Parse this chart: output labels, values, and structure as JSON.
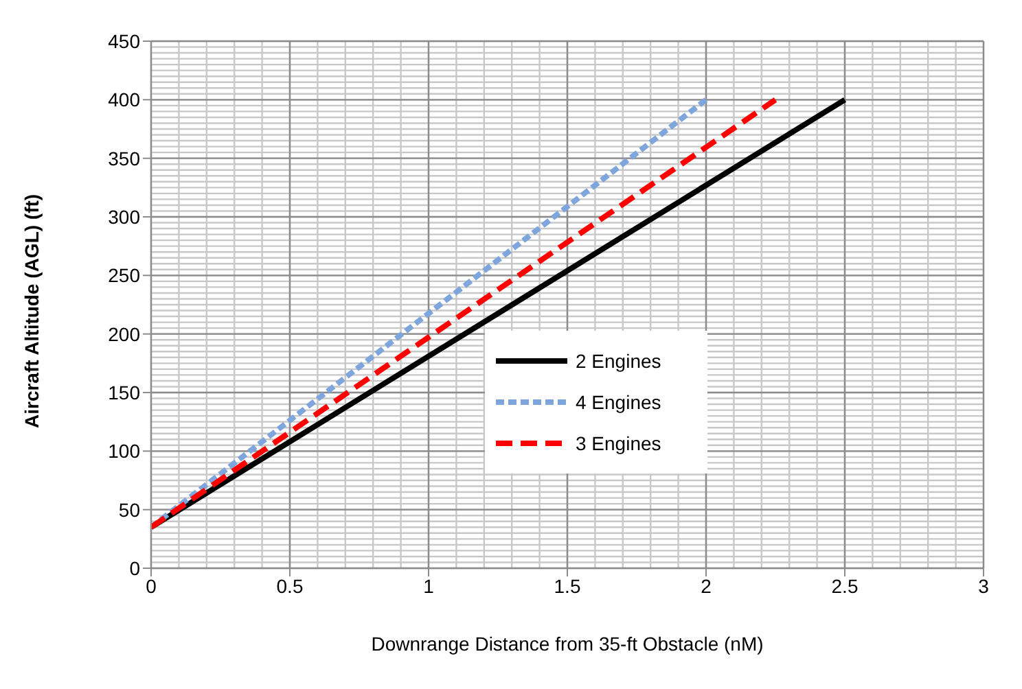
{
  "chart_data": {
    "type": "line",
    "xlabel": "Downrange Distance from 35-ft Obstacle (nM)",
    "ylabel": "Aircraft Altitude (AGL) (ft)",
    "xlim": [
      0,
      3
    ],
    "xticks": [
      0,
      0.5,
      1,
      1.5,
      2,
      2.5,
      3
    ],
    "ylim": [
      0,
      450
    ],
    "yticks": [
      0,
      50,
      100,
      150,
      200,
      250,
      300,
      350,
      400,
      450
    ],
    "grid": true,
    "legend": "center",
    "marker": "none",
    "series": [
      {
        "name": "2 Engines",
        "color": "#000000",
        "line_style": "solid",
        "x": [
          0,
          2.5
        ],
        "values": [
          35,
          400
        ]
      },
      {
        "name": "4 Engines",
        "color": "#7fa6dc",
        "line_style": "dashed",
        "x": [
          0,
          2
        ],
        "values": [
          35,
          400
        ]
      },
      {
        "name": "3 Engines",
        "color": "#ff0000",
        "line_style": "dashed",
        "x": [
          0,
          2.25
        ],
        "values": [
          35,
          400
        ]
      }
    ]
  }
}
